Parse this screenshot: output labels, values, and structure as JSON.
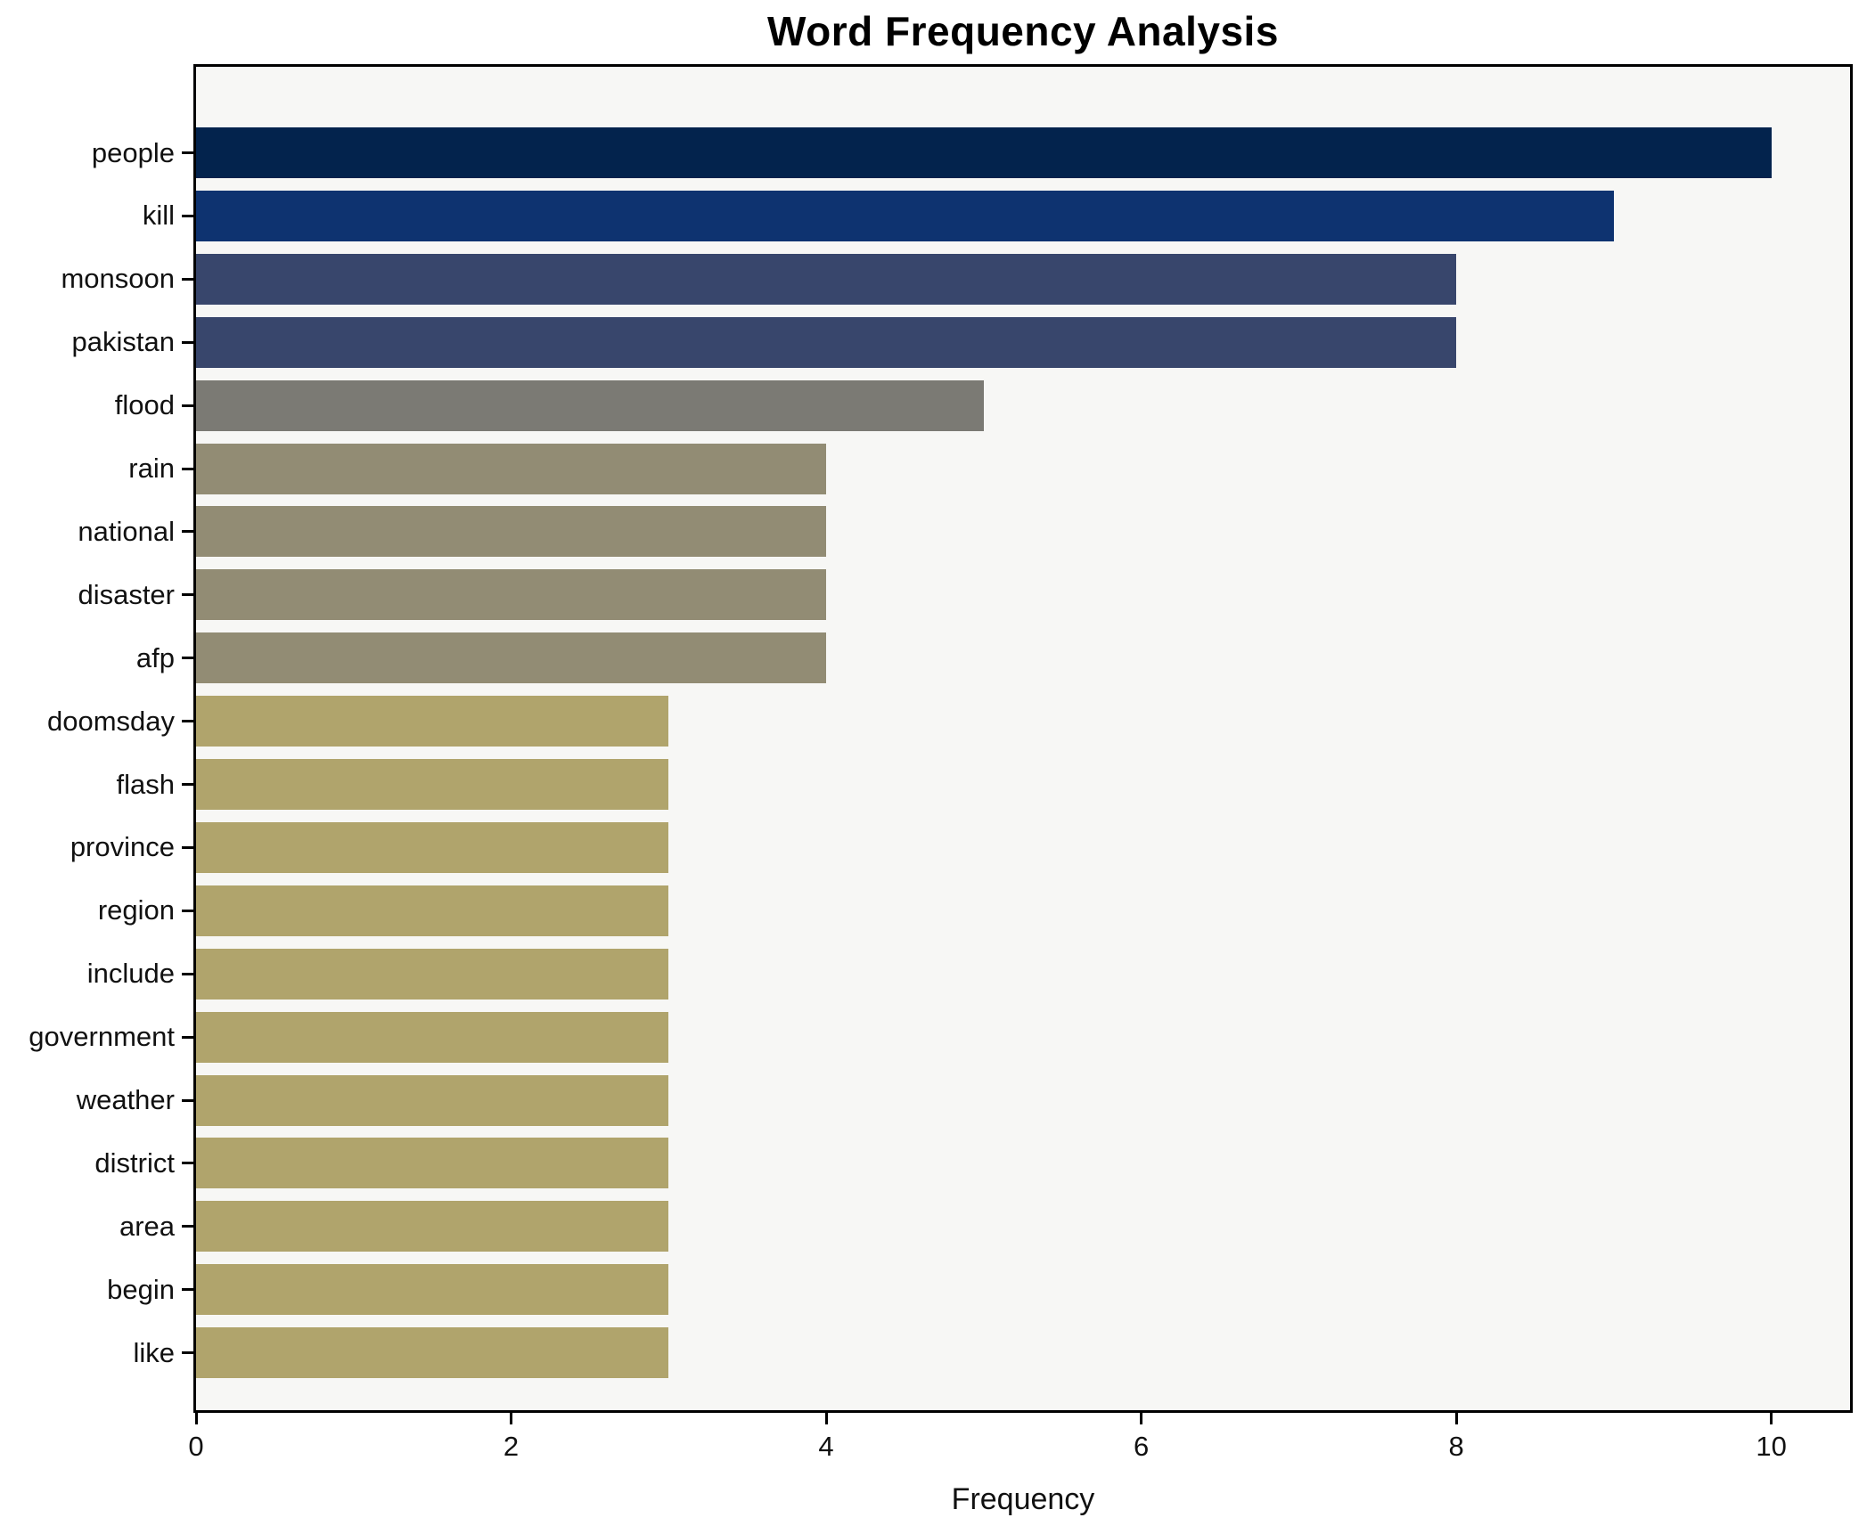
{
  "chart_data": {
    "type": "bar",
    "orientation": "horizontal",
    "title": "Word Frequency Analysis",
    "xlabel": "Frequency",
    "ylabel": "",
    "categories": [
      "people",
      "kill",
      "monsoon",
      "pakistan",
      "flood",
      "rain",
      "national",
      "disaster",
      "afp",
      "doomsday",
      "flash",
      "province",
      "region",
      "include",
      "government",
      "weather",
      "district",
      "area",
      "begin",
      "like"
    ],
    "values": [
      10,
      9,
      8,
      8,
      5,
      4,
      4,
      4,
      4,
      3,
      3,
      3,
      3,
      3,
      3,
      3,
      3,
      3,
      3,
      3
    ],
    "bar_colors": [
      "#03234d",
      "#0e3370",
      "#38466c",
      "#38466c",
      "#7b7a74",
      "#928c74",
      "#928c74",
      "#928c74",
      "#928c74",
      "#b0a46c",
      "#b0a46c",
      "#b0a46c",
      "#b0a46c",
      "#b0a46c",
      "#b0a46c",
      "#b0a46c",
      "#b0a46c",
      "#b0a46c",
      "#b0a46c",
      "#b0a46c"
    ],
    "xticks": [
      0,
      2,
      4,
      6,
      8,
      10
    ],
    "xlim": [
      0,
      10.5
    ],
    "grid": false,
    "legend": "none",
    "plot_bg": "#f7f7f5",
    "fig_bg": "#ffffff",
    "text_color": "#111111"
  }
}
